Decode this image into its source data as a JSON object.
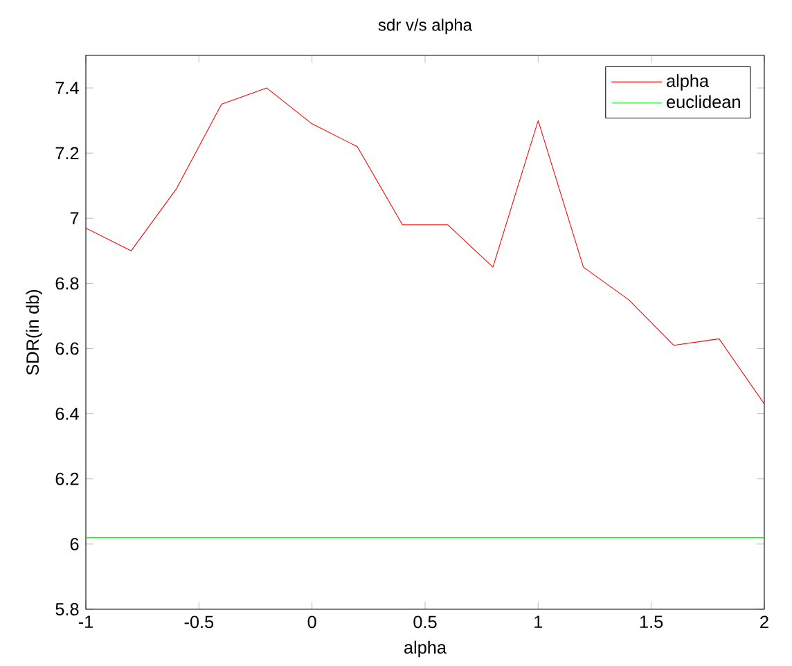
{
  "chart_data": {
    "type": "line",
    "title": "sdr v/s alpha",
    "xlabel": "alpha",
    "ylabel": "SDR(in db)",
    "x": [
      -1,
      -0.8,
      -0.6,
      -0.4,
      -0.2,
      0,
      0.2,
      0.4,
      0.6,
      0.8,
      1,
      1.2,
      1.4,
      1.6,
      1.8,
      2
    ],
    "series": [
      {
        "name": "alpha",
        "color": "#ff0000",
        "values": [
          6.97,
          6.9,
          7.09,
          7.35,
          7.4,
          7.29,
          7.22,
          6.98,
          6.98,
          6.85,
          7.3,
          6.85,
          6.75,
          6.61,
          6.63,
          6.43
        ]
      },
      {
        "name": "euclidean",
        "color": "#00ff00",
        "values": [
          6.02,
          6.02,
          6.02,
          6.02,
          6.02,
          6.02,
          6.02,
          6.02,
          6.02,
          6.02,
          6.02,
          6.02,
          6.02,
          6.02,
          6.02,
          6.02
        ]
      }
    ],
    "xlim": [
      -1,
      2
    ],
    "ylim": [
      5.8,
      7.5
    ],
    "xticks": [
      -1,
      -0.5,
      0,
      0.5,
      1,
      1.5,
      2
    ],
    "yticks": [
      5.8,
      6,
      6.2,
      6.4,
      6.6,
      6.8,
      7,
      7.2,
      7.4
    ],
    "grid": false,
    "legend": "top right",
    "marker": "none",
    "line_style": "solid"
  }
}
